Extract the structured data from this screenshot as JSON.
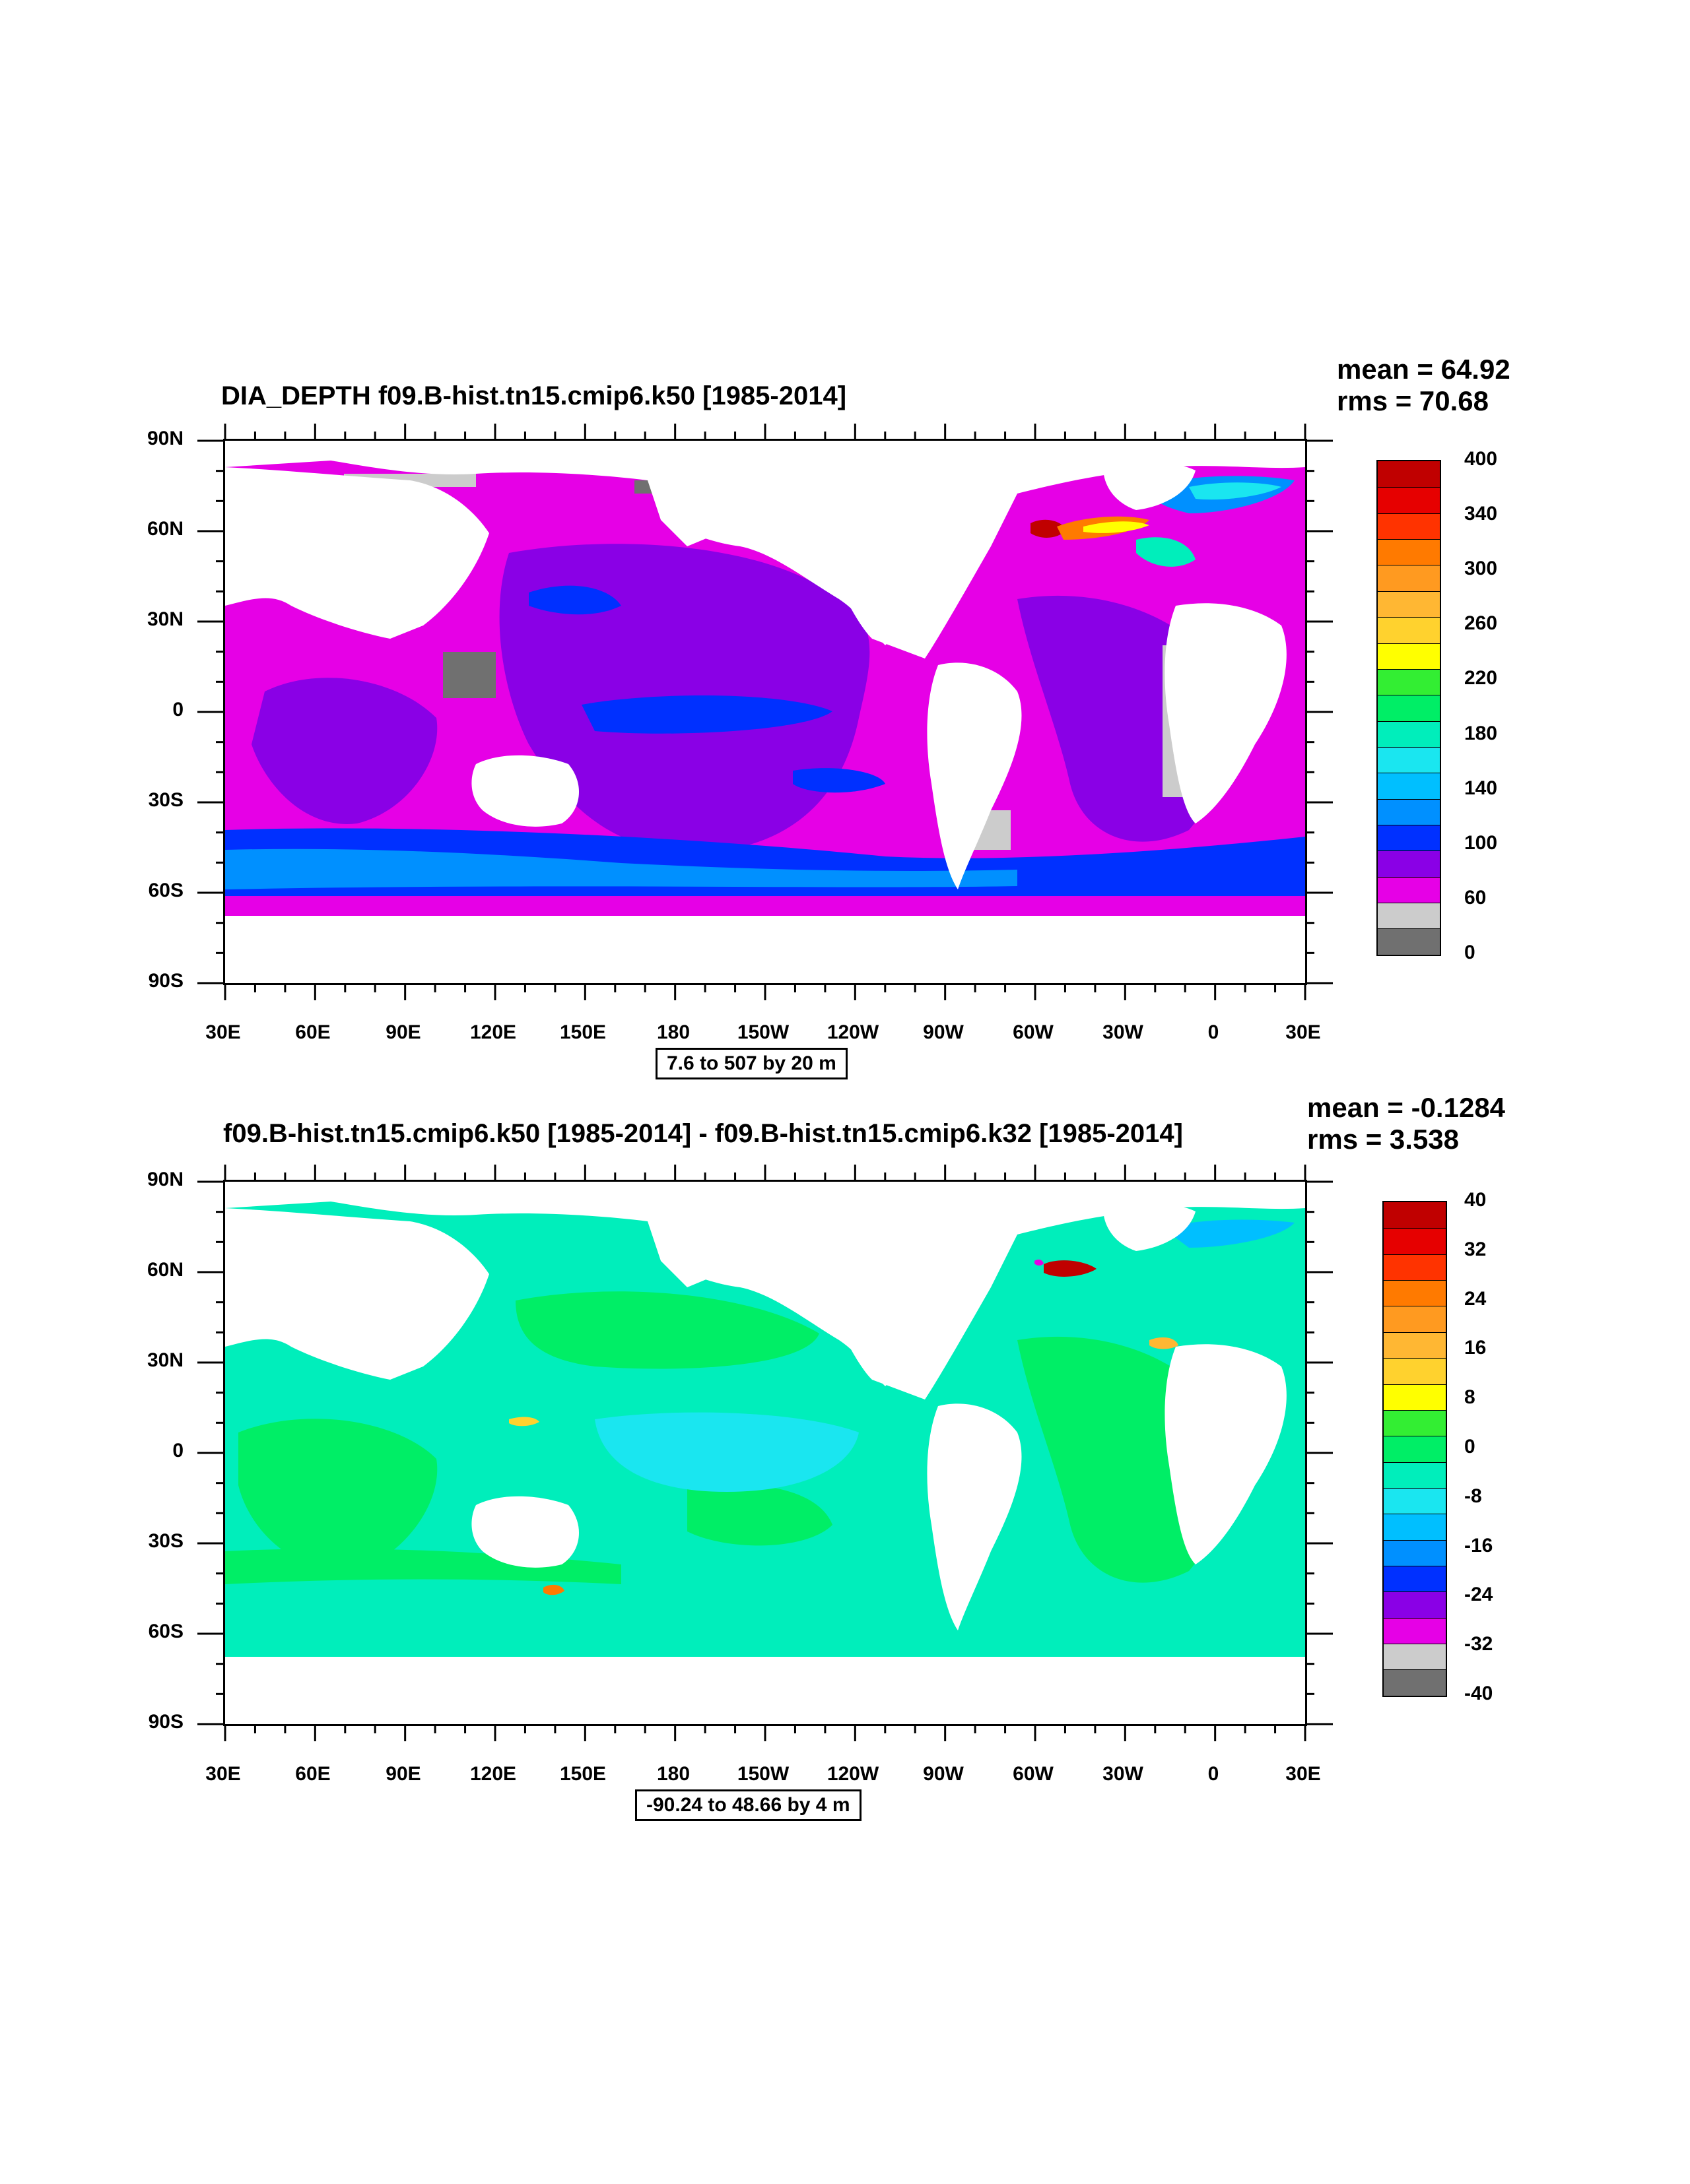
{
  "panels": [
    {
      "title": "DIA_DEPTH f09.B-hist.tn15.cmip6.k50 [1985-2014]",
      "mean": "mean = 64.92",
      "rms": "rms = 70.68",
      "range_label": "7.6 to 507 by 20 m",
      "colorbar": {
        "colors": [
          "#c00000",
          "#e60000",
          "#ff3300",
          "#ff7a00",
          "#ff9a20",
          "#ffb733",
          "#ffd22e",
          "#ffff00",
          "#33ee33",
          "#00ee66",
          "#00eebb",
          "#1ae6f0",
          "#00bfff",
          "#0090ff",
          "#0030ff",
          "#8a00e6",
          "#e600e6",
          "#cccccc",
          "#707070"
        ],
        "labels": [
          "400",
          "340",
          "300",
          "260",
          "220",
          "180",
          "140",
          "100",
          "60",
          "0"
        ]
      }
    },
    {
      "title": "f09.B-hist.tn15.cmip6.k50 [1985-2014] - f09.B-hist.tn15.cmip6.k32 [1985-2014]",
      "mean": "mean = -0.1284",
      "rms": "rms = 3.538",
      "range_label": "-90.24 to 48.66 by 4 m",
      "colorbar": {
        "colors": [
          "#c00000",
          "#e60000",
          "#ff3300",
          "#ff7a00",
          "#ff9a20",
          "#ffb733",
          "#ffd22e",
          "#ffff00",
          "#33ee33",
          "#00ee66",
          "#00eebb",
          "#1ae6f0",
          "#00bfff",
          "#0090ff",
          "#0030ff",
          "#8a00e6",
          "#e600e6",
          "#cccccc",
          "#707070"
        ],
        "labels": [
          "40",
          "32",
          "24",
          "16",
          "8",
          "0",
          "-8",
          "-16",
          "-24",
          "-32",
          "-40"
        ]
      }
    }
  ],
  "lat_ticks": [
    "90N",
    "60N",
    "30N",
    "0",
    "30S",
    "60S",
    "90S"
  ],
  "lon_ticks": [
    "30E",
    "60E",
    "90E",
    "120E",
    "150E",
    "180",
    "150W",
    "120W",
    "90W",
    "60W",
    "30W",
    "0",
    "30E"
  ]
}
